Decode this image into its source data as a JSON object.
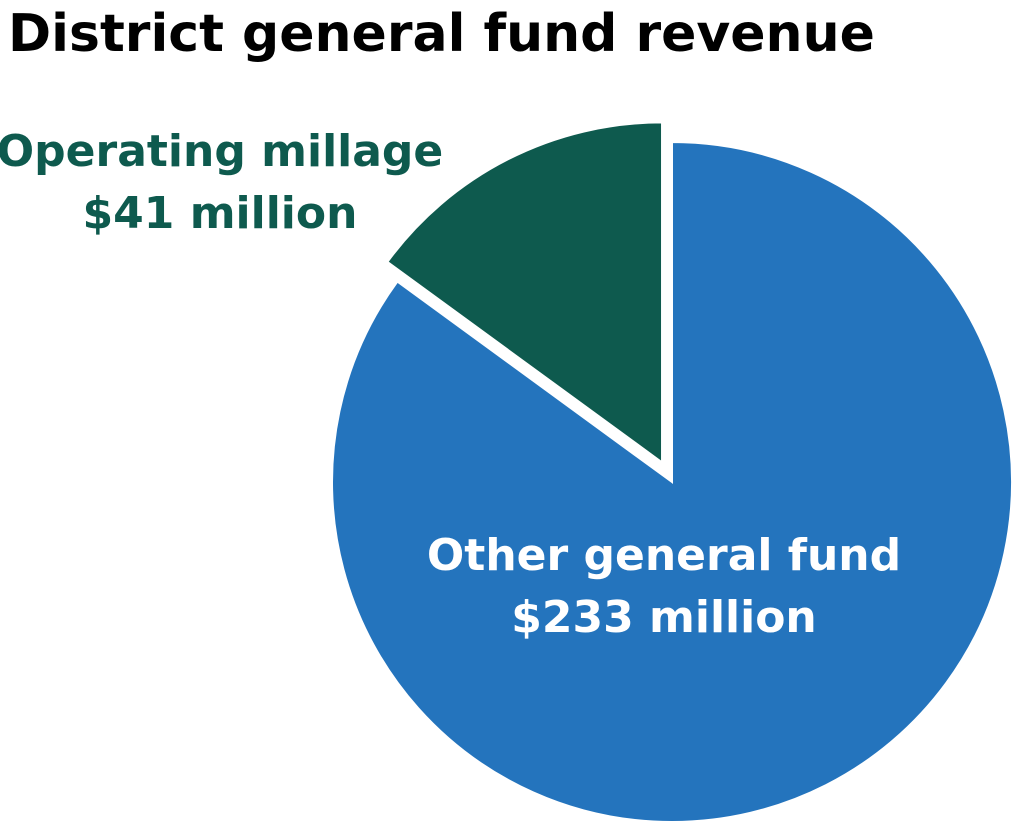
{
  "chart_data": {
    "type": "pie",
    "title": "District general fund revenue",
    "slices": [
      {
        "name": "Operating millage",
        "label": "$41 million",
        "value": 41,
        "color": "#0e5a4e",
        "exploded": true
      },
      {
        "name": "Other general fund",
        "label": "$233 million",
        "value": 233,
        "color": "#2474bd",
        "exploded": false
      }
    ],
    "start_angle": "12 o'clock",
    "direction": "counterclockwise",
    "legend": "none"
  }
}
